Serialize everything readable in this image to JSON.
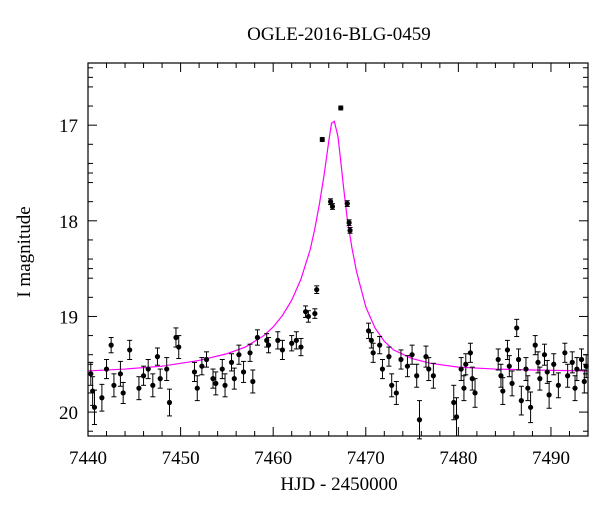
{
  "chart_data": {
    "type": "scatter",
    "title": "OGLE-2016-BLG-0459",
    "xlabel": "HJD - 2450000",
    "ylabel": "I magnitude",
    "xlim": [
      7440,
      7494
    ],
    "ylim": [
      20.25,
      16.35
    ],
    "y_inverted": true,
    "x_ticks": [
      7440,
      7450,
      7460,
      7470,
      7480,
      7490
    ],
    "y_ticks": [
      17,
      18,
      19,
      20
    ],
    "grid": false,
    "colors": {
      "data": "#000000",
      "model": "#ff00ff"
    },
    "series": [
      {
        "type": "scatter",
        "points": [
          [
            7440.3,
            19.6,
            0.12
          ],
          [
            7440.5,
            19.78,
            0.15
          ],
          [
            7440.7,
            19.95,
            0.18
          ],
          [
            7441.5,
            19.85,
            0.14
          ],
          [
            7442.0,
            19.55,
            0.1
          ],
          [
            7442.5,
            19.3,
            0.08
          ],
          [
            7442.8,
            19.72,
            0.12
          ],
          [
            7443.5,
            19.6,
            0.13
          ],
          [
            7443.8,
            19.8,
            0.11
          ],
          [
            7444.5,
            19.35,
            0.1
          ],
          [
            7445.5,
            19.75,
            0.12
          ],
          [
            7446.0,
            19.62,
            0.1
          ],
          [
            7446.5,
            19.55,
            0.1
          ],
          [
            7447.0,
            19.72,
            0.12
          ],
          [
            7447.5,
            19.42,
            0.09
          ],
          [
            7447.8,
            19.65,
            0.1
          ],
          [
            7448.5,
            19.55,
            0.12
          ],
          [
            7448.8,
            19.9,
            0.14
          ],
          [
            7449.5,
            19.22,
            0.1
          ],
          [
            7449.8,
            19.32,
            0.12
          ],
          [
            7451.5,
            19.58,
            0.1
          ],
          [
            7451.8,
            19.75,
            0.13
          ],
          [
            7452.3,
            19.52,
            0.09
          ],
          [
            7452.8,
            19.45,
            0.08
          ],
          [
            7453.5,
            19.65,
            0.1
          ],
          [
            7453.8,
            19.7,
            0.12
          ],
          [
            7454.5,
            19.55,
            0.1
          ],
          [
            7454.8,
            19.72,
            0.12
          ],
          [
            7455.5,
            19.48,
            0.09
          ],
          [
            7455.8,
            19.65,
            0.11
          ],
          [
            7456.3,
            19.4,
            0.1
          ],
          [
            7456.8,
            19.58,
            0.11
          ],
          [
            7457.5,
            19.38,
            0.09
          ],
          [
            7457.8,
            19.68,
            0.12
          ],
          [
            7458.3,
            19.22,
            0.08
          ],
          [
            7459.3,
            19.25,
            0.07
          ],
          [
            7459.5,
            19.3,
            0.08
          ],
          [
            7460.5,
            19.25,
            0.09
          ],
          [
            7461.0,
            19.35,
            0.1
          ],
          [
            7462.0,
            19.28,
            0.08
          ],
          [
            7462.5,
            19.25,
            0.09
          ],
          [
            7463.0,
            19.32,
            0.09
          ],
          [
            7463.5,
            18.95,
            0.06
          ],
          [
            7463.8,
            19.0,
            0.06
          ],
          [
            7464.5,
            18.97,
            0.05
          ],
          [
            7464.7,
            18.72,
            0.04
          ],
          [
            7465.3,
            17.15,
            0.02
          ],
          [
            7466.2,
            17.8,
            0.03
          ],
          [
            7466.4,
            17.85,
            0.03
          ],
          [
            7467.3,
            16.82,
            0.02
          ],
          [
            7468.0,
            17.82,
            0.03
          ],
          [
            7468.2,
            18.02,
            0.03
          ],
          [
            7468.3,
            18.1,
            0.03
          ],
          [
            7470.3,
            19.15,
            0.08
          ],
          [
            7470.6,
            19.25,
            0.08
          ],
          [
            7470.8,
            19.38,
            0.1
          ],
          [
            7471.5,
            19.3,
            0.09
          ],
          [
            7471.8,
            19.55,
            0.1
          ],
          [
            7472.5,
            19.42,
            0.1
          ],
          [
            7472.8,
            19.72,
            0.12
          ],
          [
            7473.3,
            19.8,
            0.12
          ],
          [
            7473.8,
            19.45,
            0.1
          ],
          [
            7474.5,
            19.52,
            0.11
          ],
          [
            7475.0,
            19.4,
            0.1
          ],
          [
            7475.5,
            19.62,
            0.12
          ],
          [
            7475.8,
            20.08,
            0.2
          ],
          [
            7476.5,
            19.42,
            0.11
          ],
          [
            7476.8,
            19.55,
            0.12
          ],
          [
            7477.3,
            19.62,
            0.13
          ],
          [
            7479.5,
            19.9,
            0.18
          ],
          [
            7479.8,
            20.05,
            0.2
          ],
          [
            7480.3,
            19.55,
            0.12
          ],
          [
            7480.6,
            19.75,
            0.13
          ],
          [
            7480.8,
            19.5,
            0.11
          ],
          [
            7481.3,
            19.38,
            0.1
          ],
          [
            7481.5,
            19.65,
            0.12
          ],
          [
            7481.8,
            19.8,
            0.15
          ],
          [
            7484.3,
            19.45,
            0.11
          ],
          [
            7484.6,
            19.62,
            0.12
          ],
          [
            7484.8,
            19.78,
            0.14
          ],
          [
            7485.3,
            19.35,
            0.1
          ],
          [
            7485.5,
            19.52,
            0.11
          ],
          [
            7485.8,
            19.7,
            0.13
          ],
          [
            7486.3,
            19.12,
            0.09
          ],
          [
            7486.5,
            19.45,
            0.11
          ],
          [
            7486.8,
            19.88,
            0.15
          ],
          [
            7487.3,
            19.55,
            0.12
          ],
          [
            7487.5,
            19.75,
            0.13
          ],
          [
            7487.8,
            19.95,
            0.16
          ],
          [
            7488.3,
            19.3,
            0.1
          ],
          [
            7488.6,
            19.48,
            0.11
          ],
          [
            7488.8,
            19.65,
            0.12
          ],
          [
            7489.3,
            19.4,
            0.11
          ],
          [
            7489.6,
            19.58,
            0.12
          ],
          [
            7489.8,
            19.82,
            0.14
          ],
          [
            7490.3,
            19.5,
            0.11
          ],
          [
            7490.8,
            19.72,
            0.13
          ],
          [
            7491.5,
            19.38,
            0.1
          ],
          [
            7491.8,
            19.62,
            0.12
          ],
          [
            7492.3,
            19.48,
            0.11
          ],
          [
            7492.6,
            19.75,
            0.13
          ],
          [
            7492.8,
            19.55,
            0.12
          ],
          [
            7493.3,
            19.45,
            0.11
          ],
          [
            7493.6,
            19.68,
            0.12
          ],
          [
            7493.8,
            19.52,
            0.12
          ]
        ]
      },
      {
        "type": "line",
        "x": [
          7440,
          7444,
          7448,
          7452,
          7455,
          7457,
          7459,
          7460,
          7461,
          7462,
          7463,
          7464,
          7464.5,
          7465,
          7465.5,
          7466,
          7466.3,
          7466.6,
          7467,
          7467.3,
          7467.6,
          7468,
          7468.5,
          7469,
          7470,
          7471,
          7472,
          7473,
          7475,
          7477,
          7480,
          7484,
          7488,
          7494
        ],
        "y": [
          19.57,
          19.55,
          19.52,
          19.46,
          19.39,
          19.32,
          19.2,
          19.11,
          18.99,
          18.83,
          18.61,
          18.3,
          18.08,
          17.82,
          17.52,
          17.17,
          16.98,
          16.96,
          17.12,
          17.38,
          17.65,
          17.98,
          18.28,
          18.53,
          18.9,
          19.12,
          19.26,
          19.35,
          19.44,
          19.49,
          19.53,
          19.55,
          19.56,
          19.57
        ]
      }
    ]
  }
}
